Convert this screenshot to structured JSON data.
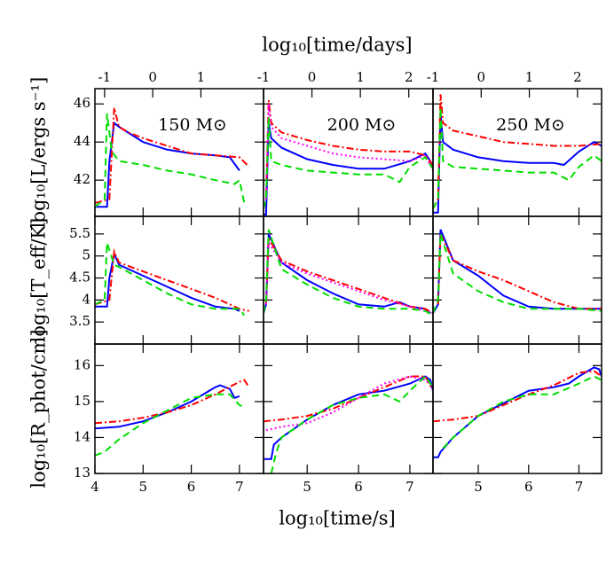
{
  "figure": {
    "xlabel": "log₁₀[time/s]",
    "x2label": "log₁₀[time/days]",
    "ylabels": [
      "log₁₀[L/ergs s⁻¹]",
      "log₁₀[T_eff/K]",
      "log₁₀[R_phot/cm]"
    ]
  },
  "chart_data": [
    {
      "type": "line",
      "annotation": "150 M⊙",
      "xlim": [
        4,
        7.5
      ],
      "ylim": [
        40.1,
        46.8
      ],
      "xticks": [
        4,
        5,
        6,
        7
      ],
      "yticks": [
        42,
        44,
        46
      ],
      "x2lim": [
        -1.2,
        2.3
      ],
      "x2ticks": [
        -1,
        0,
        1
      ],
      "series": [
        {
          "color": "#0000ff",
          "dash": "solid",
          "x": [
            4,
            4.25,
            4.3,
            4.4,
            4.5,
            5,
            5.5,
            6,
            6.5,
            6.8,
            7.0
          ],
          "values": [
            40.6,
            40.6,
            43,
            45,
            44.8,
            44,
            43.6,
            43.4,
            43.3,
            43.2,
            42.5
          ]
        },
        {
          "color": "#ff0000",
          "dash": "dashdot",
          "x": [
            4,
            4.3,
            4.4,
            4.5,
            4.7,
            5,
            5.5,
            6,
            6.5,
            7,
            7.2
          ],
          "values": [
            40.8,
            41,
            45.8,
            44.8,
            44.5,
            44.2,
            43.8,
            43.4,
            43.3,
            43.2,
            42.7
          ]
        },
        {
          "color": "#00dd00",
          "dash": "dashed",
          "x": [
            4,
            4.2,
            4.25,
            4.35,
            4.5,
            5,
            5.5,
            6,
            6.5,
            6.9,
            7.0,
            7.1
          ],
          "values": [
            40.6,
            41,
            45.5,
            43.5,
            43,
            42.8,
            42.5,
            42.3,
            42,
            41.8,
            42,
            40.8
          ]
        }
      ]
    },
    {
      "type": "line",
      "annotation": "200 M⊙",
      "xlim": [
        4.15,
        7.45
      ],
      "ylim": [
        40.1,
        46.8
      ],
      "xticks": [
        5,
        6,
        7
      ],
      "yticks": [
        42,
        44,
        46
      ],
      "x2lim": [
        -1,
        2.5
      ],
      "x2ticks": [
        -1,
        0,
        1,
        2
      ],
      "series": [
        {
          "color": "#0000ff",
          "dash": "solid",
          "x": [
            4.15,
            4.2,
            4.25,
            4.3,
            4.5,
            5,
            5.5,
            6,
            6.5,
            7,
            7.3,
            7.4,
            7.45
          ],
          "values": [
            40.2,
            40.2,
            45,
            44.2,
            43.7,
            43.1,
            42.8,
            42.6,
            42.6,
            43,
            43.4,
            43.0,
            42.6
          ]
        },
        {
          "color": "#ff0000",
          "dash": "dashdot",
          "x": [
            4.15,
            4.2,
            4.25,
            4.3,
            4.5,
            5,
            5.5,
            6,
            6.5,
            7,
            7.3,
            7.45
          ],
          "values": [
            40.5,
            41,
            46.2,
            45,
            44.5,
            44.1,
            43.8,
            43.6,
            43.5,
            43.5,
            43.3,
            42.8
          ]
        },
        {
          "color": "#ff00ff",
          "dash": "dotted",
          "x": [
            4.2,
            4.25,
            4.3,
            4.5,
            5,
            5.5,
            6,
            6.5,
            7,
            7.3,
            7.45
          ],
          "values": [
            41,
            46,
            44.8,
            44.2,
            43.8,
            43.4,
            43.2,
            43.1,
            43.0,
            43.3,
            42.5
          ]
        },
        {
          "color": "#00dd00",
          "dash": "dashed",
          "x": [
            4.15,
            4.2,
            4.25,
            4.3,
            4.5,
            5,
            5.5,
            6,
            6.5,
            6.8,
            7,
            7.3,
            7.45
          ],
          "values": [
            40.5,
            41,
            45.3,
            43,
            42.8,
            42.5,
            42.4,
            42.3,
            42.3,
            41.9,
            42.7,
            43.2,
            42.6
          ]
        }
      ]
    },
    {
      "type": "line",
      "annotation": "250 M⊙",
      "xlim": [
        4.1,
        7.45
      ],
      "ylim": [
        40.1,
        46.8
      ],
      "xticks": [
        5,
        6,
        7
      ],
      "yticks": [
        42,
        44,
        46
      ],
      "x2lim": [
        -1,
        2.5
      ],
      "x2ticks": [
        -1,
        0,
        1,
        2
      ],
      "series": [
        {
          "color": "#0000ff",
          "dash": "solid",
          "x": [
            4.1,
            4.2,
            4.25,
            4.3,
            4.5,
            5,
            5.5,
            6,
            6.5,
            6.7,
            7,
            7.3,
            7.45
          ],
          "values": [
            40.3,
            40.3,
            45.5,
            44,
            43.6,
            43.2,
            43,
            42.9,
            42.9,
            42.8,
            43.5,
            44,
            43.8
          ]
        },
        {
          "color": "#ff0000",
          "dash": "dashdot",
          "x": [
            4.1,
            4.2,
            4.25,
            4.3,
            4.5,
            5,
            5.5,
            6,
            6.5,
            7,
            7.45
          ],
          "values": [
            40.5,
            41,
            46.5,
            45,
            44.6,
            44.3,
            44.0,
            43.9,
            43.8,
            43.8,
            43.9
          ]
        },
        {
          "color": "#00dd00",
          "dash": "dashed",
          "x": [
            4.1,
            4.2,
            4.25,
            4.3,
            4.5,
            5,
            5.5,
            6,
            6.5,
            6.8,
            7,
            7.3,
            7.45
          ],
          "values": [
            40.5,
            41,
            45.8,
            43,
            42.7,
            42.6,
            42.5,
            42.4,
            42.4,
            42,
            42.7,
            43.3,
            43.0
          ]
        }
      ]
    },
    {
      "type": "line",
      "xlim": [
        4,
        7.5
      ],
      "ylim": [
        3,
        5.9
      ],
      "xticks": [
        4,
        5,
        6,
        7
      ],
      "yticks": [
        3.5,
        4,
        4.5,
        5,
        5.5
      ],
      "series": [
        {
          "color": "#0000ff",
          "dash": "solid",
          "x": [
            4,
            4.25,
            4.3,
            4.4,
            4.5,
            5,
            5.5,
            6,
            6.5,
            6.9,
            7.0
          ],
          "values": [
            3.85,
            3.85,
            4.5,
            5.05,
            4.8,
            4.55,
            4.3,
            4.05,
            3.85,
            3.8,
            3.75
          ]
        },
        {
          "color": "#ff0000",
          "dash": "dashdot",
          "x": [
            4,
            4.3,
            4.4,
            4.5,
            5,
            5.5,
            6,
            6.5,
            7,
            7.2
          ],
          "values": [
            3.9,
            4,
            5.1,
            4.85,
            4.65,
            4.45,
            4.25,
            4.05,
            3.8,
            3.75
          ]
        },
        {
          "color": "#00dd00",
          "dash": "dashed",
          "x": [
            4,
            4.2,
            4.25,
            4.4,
            4.5,
            5,
            5.5,
            6,
            6.5,
            7,
            7.1
          ],
          "values": [
            3.9,
            4,
            5.3,
            4.8,
            4.75,
            4.45,
            4.15,
            3.9,
            3.8,
            3.8,
            3.65
          ]
        }
      ]
    },
    {
      "type": "line",
      "xlim": [
        4.15,
        7.45
      ],
      "ylim": [
        3,
        5.9
      ],
      "xticks": [
        5,
        6,
        7
      ],
      "yticks": [
        3.5,
        4,
        4.5,
        5,
        5.5
      ],
      "series": [
        {
          "color": "#0000ff",
          "dash": "solid",
          "x": [
            4.15,
            4.2,
            4.25,
            4.5,
            5,
            5.5,
            6,
            6.5,
            6.8,
            7,
            7.3,
            7.4
          ],
          "values": [
            3.7,
            3.9,
            5.5,
            4.85,
            4.45,
            4.15,
            3.9,
            3.85,
            3.95,
            3.85,
            3.8,
            3.7
          ]
        },
        {
          "color": "#ff0000",
          "dash": "dashdot",
          "x": [
            4.2,
            4.25,
            4.5,
            5,
            5.5,
            6,
            6.5,
            7,
            7.3,
            7.45
          ],
          "values": [
            3.9,
            5.4,
            4.9,
            4.65,
            4.45,
            4.25,
            4.05,
            3.85,
            3.8,
            3.7
          ]
        },
        {
          "color": "#ff00ff",
          "dash": "dotted",
          "x": [
            4.2,
            4.25,
            4.5,
            5,
            5.5,
            6,
            6.5,
            7,
            7.3,
            7.45
          ],
          "values": [
            3.9,
            5.3,
            4.85,
            4.6,
            4.4,
            4.2,
            4.0,
            3.85,
            3.75,
            3.7
          ]
        },
        {
          "color": "#00dd00",
          "dash": "dashed",
          "x": [
            4.15,
            4.2,
            4.25,
            4.5,
            5,
            5.5,
            6,
            6.5,
            7,
            7.3,
            7.45
          ],
          "values": [
            3.7,
            4,
            5.6,
            4.7,
            4.35,
            4.05,
            3.85,
            3.8,
            3.8,
            3.75,
            3.65
          ]
        }
      ]
    },
    {
      "type": "line",
      "xlim": [
        4.1,
        7.45
      ],
      "ylim": [
        3,
        5.9
      ],
      "xticks": [
        5,
        6,
        7
      ],
      "yticks": [
        3.5,
        4,
        4.5,
        5,
        5.5
      ],
      "series": [
        {
          "color": "#0000ff",
          "dash": "solid",
          "x": [
            4.1,
            4.2,
            4.25,
            4.5,
            5,
            5.5,
            6,
            6.5,
            7,
            7.45
          ],
          "values": [
            3.7,
            3.9,
            5.6,
            4.9,
            4.55,
            4.1,
            3.85,
            3.8,
            3.8,
            3.8
          ]
        },
        {
          "color": "#ff0000",
          "dash": "dashdot",
          "x": [
            4.2,
            4.25,
            4.5,
            5,
            5.5,
            6,
            6.5,
            7,
            7.45
          ],
          "values": [
            3.9,
            5.5,
            4.9,
            4.65,
            4.45,
            4.2,
            3.95,
            3.8,
            3.8
          ]
        },
        {
          "color": "#00dd00",
          "dash": "dashed",
          "x": [
            4.1,
            4.2,
            4.25,
            4.5,
            5,
            5.5,
            6,
            6.5,
            7,
            7.45
          ],
          "values": [
            3.7,
            4,
            5.5,
            4.6,
            4.2,
            3.95,
            3.8,
            3.8,
            3.8,
            3.75
          ]
        }
      ]
    },
    {
      "type": "line",
      "xlim": [
        4,
        7.5
      ],
      "ylim": [
        13,
        16.6
      ],
      "xticks": [
        4,
        5,
        6,
        7
      ],
      "yticks": [
        13,
        14,
        15,
        16
      ],
      "series": [
        {
          "color": "#0000ff",
          "dash": "solid",
          "x": [
            4,
            4.5,
            5,
            5.5,
            6,
            6.5,
            6.6,
            6.8,
            6.9,
            7.0
          ],
          "values": [
            14.25,
            14.3,
            14.45,
            14.7,
            15,
            15.4,
            15.45,
            15.35,
            15.1,
            15.15
          ]
        },
        {
          "color": "#ff0000",
          "dash": "dashdot",
          "x": [
            4,
            4.5,
            5,
            5.5,
            6,
            6.5,
            7,
            7.1,
            7.2
          ],
          "values": [
            14.4,
            14.45,
            14.55,
            14.7,
            14.9,
            15.2,
            15.55,
            15.6,
            15.4
          ]
        },
        {
          "color": "#00dd00",
          "dash": "dashed",
          "x": [
            4,
            4.2,
            4.5,
            5,
            5.5,
            6,
            6.5,
            6.8,
            7.0,
            7.1
          ],
          "values": [
            13.5,
            13.6,
            13.95,
            14.4,
            14.75,
            15.1,
            15.2,
            15.2,
            14.9,
            14.85
          ]
        }
      ]
    },
    {
      "type": "line",
      "xlim": [
        4.15,
        7.45
      ],
      "ylim": [
        13,
        16.6
      ],
      "xticks": [
        5,
        6,
        7
      ],
      "yticks": [
        13,
        14,
        15,
        16
      ],
      "series": [
        {
          "color": "#0000ff",
          "dash": "solid",
          "x": [
            4.15,
            4.3,
            4.35,
            4.5,
            5,
            5.5,
            6,
            6.5,
            7,
            7.3,
            7.4,
            7.45
          ],
          "values": [
            13.4,
            13.4,
            13.8,
            14,
            14.5,
            14.9,
            15.2,
            15.3,
            15.5,
            15.7,
            15.6,
            15.3
          ]
        },
        {
          "color": "#ff0000",
          "dash": "dashdot",
          "x": [
            4.15,
            4.5,
            5,
            5.5,
            6,
            6.5,
            7,
            7.3,
            7.45
          ],
          "values": [
            14.45,
            14.5,
            14.6,
            14.8,
            15.1,
            15.4,
            15.7,
            15.7,
            15.3
          ]
        },
        {
          "color": "#ff00ff",
          "dash": "dotted",
          "x": [
            4.2,
            4.5,
            5,
            5.5,
            6,
            6.5,
            7,
            7.3,
            7.45
          ],
          "values": [
            14.2,
            14.3,
            14.4,
            14.7,
            15.1,
            15.5,
            15.7,
            15.6,
            15.4
          ]
        },
        {
          "color": "#00dd00",
          "dash": "dashed",
          "x": [
            4.3,
            4.4,
            4.5,
            5,
            5.5,
            6,
            6.5,
            6.8,
            7,
            7.3,
            7.45
          ],
          "values": [
            13,
            13.6,
            14,
            14.5,
            14.9,
            15.1,
            15.2,
            15.0,
            15.3,
            15.7,
            15.4
          ]
        }
      ]
    },
    {
      "type": "line",
      "xlim": [
        4.1,
        7.45
      ],
      "ylim": [
        13,
        16.6
      ],
      "xticks": [
        5,
        6,
        7
      ],
      "yticks": [
        13,
        14,
        15,
        16
      ],
      "series": [
        {
          "color": "#0000ff",
          "dash": "solid",
          "x": [
            4.1,
            4.2,
            4.25,
            4.5,
            5,
            5.5,
            6,
            6.5,
            6.8,
            7,
            7.3,
            7.4,
            7.45
          ],
          "values": [
            13.45,
            13.45,
            13.6,
            14,
            14.6,
            14.95,
            15.3,
            15.4,
            15.5,
            15.7,
            15.95,
            15.9,
            15.7
          ]
        },
        {
          "color": "#ff0000",
          "dash": "dashdot",
          "x": [
            4.1,
            4.5,
            5,
            5.5,
            6,
            6.5,
            7,
            7.3,
            7.45
          ],
          "values": [
            14.45,
            14.5,
            14.6,
            14.9,
            15.2,
            15.45,
            15.8,
            15.85,
            15.7
          ]
        },
        {
          "color": "#00dd00",
          "dash": "dashed",
          "x": [
            4.3,
            4.5,
            5,
            5.5,
            6,
            6.5,
            7,
            7.3,
            7.45
          ],
          "values": [
            13.7,
            14,
            14.6,
            15,
            15.2,
            15.2,
            15.5,
            15.7,
            15.6
          ]
        }
      ]
    }
  ]
}
